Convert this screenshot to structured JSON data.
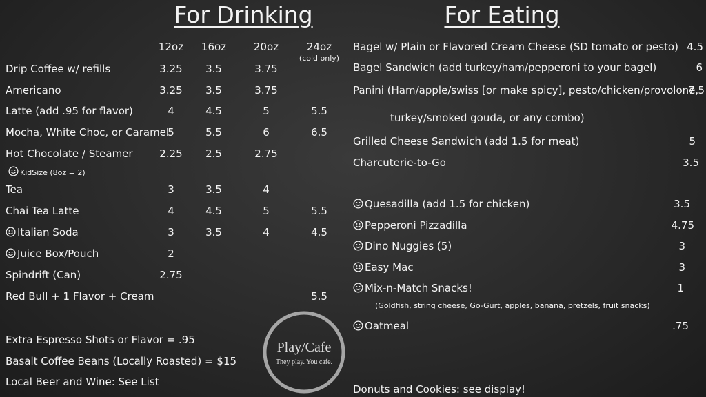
{
  "drinking": {
    "title": "For Drinking",
    "sizes": [
      "12oz",
      "16oz",
      "20oz",
      "24oz"
    ],
    "size_note": "(cold only)",
    "items": [
      {
        "name": "Drip Coffee w/ refills",
        "prices": [
          "3.25",
          "3.5",
          "3.75",
          null
        ]
      },
      {
        "name": "Americano",
        "prices": [
          "3.25",
          "3.5",
          "3.75",
          null
        ]
      },
      {
        "name": "Latte (add .95 for flavor)",
        "prices": [
          "4",
          "4.5",
          "5",
          "5.5"
        ]
      },
      {
        "name": "Mocha, White Choc, or Caramel",
        "prices": [
          "5",
          "5.5",
          "6",
          "6.5"
        ]
      },
      {
        "name": "Hot Chocolate / Steamer",
        "prices": [
          "2.25",
          "2.5",
          "2.75",
          null
        ],
        "note": "KidSize (8oz = 2)"
      },
      {
        "name": "Tea",
        "prices": [
          "3",
          "3.5",
          "4",
          null
        ]
      },
      {
        "name": "Chai Tea Latte",
        "prices": [
          "4",
          "4.5",
          "5",
          "5.5"
        ]
      },
      {
        "name": "Italian Soda",
        "prices": [
          "3",
          "3.5",
          "4",
          "4.5"
        ],
        "smiley": true
      },
      {
        "name": "Juice Box/Pouch",
        "prices": [
          "2",
          null,
          null,
          null
        ],
        "smiley": true
      },
      {
        "name": "Spindrift (Can)",
        "prices": [
          "2.75",
          null,
          null,
          null
        ]
      },
      {
        "name": "Red Bull + 1 Flavor + Cream",
        "prices": [
          null,
          null,
          null,
          "5.5"
        ]
      }
    ],
    "extras": [
      "Extra Espresso Shots or Flavor = .95",
      "Basalt Coffee Beans (Locally Roasted) = $15",
      "Local Beer and Wine: See List"
    ]
  },
  "eating": {
    "title": "For Eating",
    "items": [
      {
        "name": "Bagel w/ Plain or Flavored Cream Cheese (SD tomato or pesto)",
        "price": "4.5"
      },
      {
        "name": "Bagel Sandwich (add turkey/ham/pepperoni to your bagel)",
        "price": "6"
      },
      {
        "name": "Panini (Ham/apple/swiss [or make spicy], pesto/chicken/provolone,",
        "price": "7.5",
        "line2": "turkey/smoked gouda, or any combo)"
      },
      {
        "name": "Grilled Cheese Sandwich (add 1.5 for meat)",
        "price": "5"
      },
      {
        "name": "Charcuterie-to-Go",
        "price": "3.5"
      },
      {
        "name": "Quesadilla (add 1.5 for chicken)",
        "price": "3.5",
        "smiley": true
      },
      {
        "name": "Pepperoni Pizzadilla",
        "price": "4.75",
        "smiley": true
      },
      {
        "name": "Dino Nuggies (5)",
        "price": "3",
        "smiley": true
      },
      {
        "name": "Easy Mac",
        "price": "3",
        "smiley": true
      },
      {
        "name": "Mix-n-Match Snacks!",
        "price": "1",
        "smiley": true,
        "note": "(Goldfish, string cheese, Go-Gurt, apples, banana, pretzels,  fruit snacks)"
      },
      {
        "name": "Oatmeal",
        "price": ".75",
        "smiley": true
      }
    ],
    "footer": "Donuts and Cookies: see display!"
  },
  "logo": {
    "name": "Play/Cafe",
    "tagline": "They play. You cafe."
  }
}
